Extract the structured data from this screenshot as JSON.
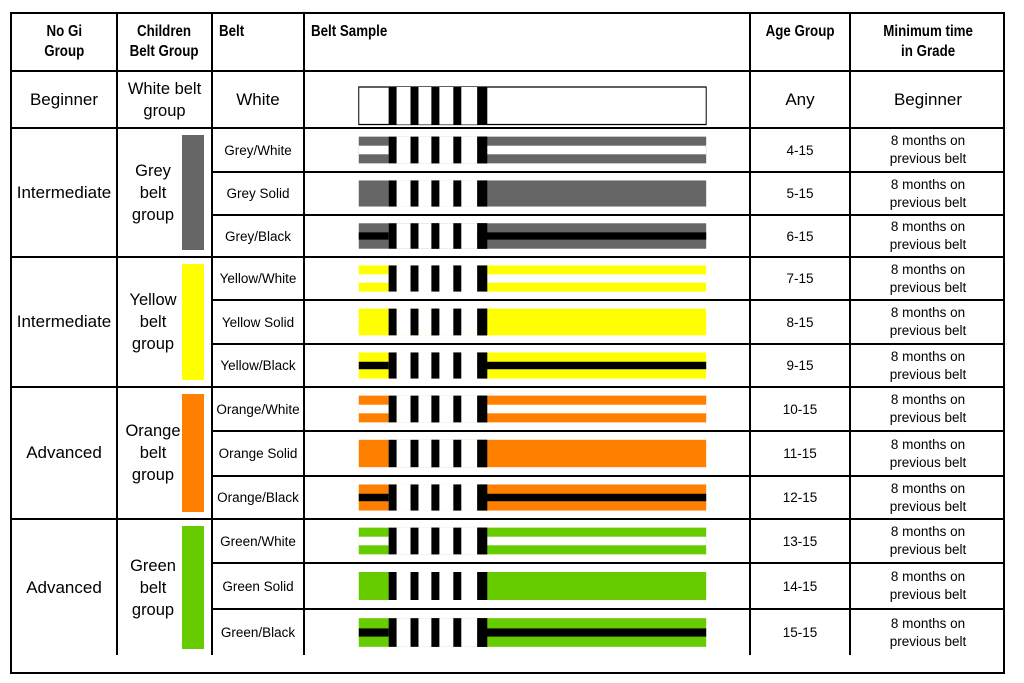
{
  "headers": {
    "no_gi_group": "No Gi\nGroup",
    "children_belt_group": "Children\nBelt Group",
    "belt": "Belt",
    "belt_sample": "Belt Sample",
    "age_group": "Age Group",
    "minimum_time": "Minimum time\nin Grade"
  },
  "groups": [
    {
      "no_gi": "Beginner",
      "children_group": "White belt\ngroup",
      "swatch_color": "",
      "belts": [
        {
          "name": "White",
          "age": "Any",
          "min_time": "Beginner",
          "base": "#ffffff",
          "stripe": ""
        }
      ]
    },
    {
      "no_gi": "Intermediate",
      "children_group": "Grey\nbelt\ngroup",
      "swatch_color": "#666666",
      "belts": [
        {
          "name": "Grey/White",
          "age": "4-15",
          "min_time": "8 months on\nprevious belt",
          "base": "#666666",
          "stripe": "#ffffff"
        },
        {
          "name": "Grey Solid",
          "age": "5-15",
          "min_time": "8 months on\nprevious belt",
          "base": "#666666",
          "stripe": ""
        },
        {
          "name": "Grey/Black",
          "age": "6-15",
          "min_time": "8 months on\nprevious belt",
          "base": "#666666",
          "stripe": "#000000"
        }
      ]
    },
    {
      "no_gi": "Intermediate",
      "children_group": "Yellow\nbelt\ngroup",
      "swatch_color": "#ffff00",
      "belts": [
        {
          "name": "Yellow/White",
          "age": "7-15",
          "min_time": "8 months on\nprevious belt",
          "base": "#ffff00",
          "stripe": "#ffffff"
        },
        {
          "name": "Yellow Solid",
          "age": "8-15",
          "min_time": "8 months on\nprevious belt",
          "base": "#ffff00",
          "stripe": ""
        },
        {
          "name": "Yellow/Black",
          "age": "9-15",
          "min_time": "8 months on\nprevious belt",
          "base": "#ffff00",
          "stripe": "#000000"
        }
      ]
    },
    {
      "no_gi": "Advanced",
      "children_group": "Orange\nbelt\ngroup",
      "swatch_color": "#ff7f00",
      "belts": [
        {
          "name": "Orange/White",
          "age": "10-15",
          "min_time": "8 months on\nprevious belt",
          "base": "#ff7f00",
          "stripe": "#ffffff"
        },
        {
          "name": "Orange Solid",
          "age": "11-15",
          "min_time": "8 months on\nprevious belt",
          "base": "#ff7f00",
          "stripe": ""
        },
        {
          "name": "Orange/Black",
          "age": "12-15",
          "min_time": "8 months on\nprevious belt",
          "base": "#ff7f00",
          "stripe": "#000000"
        }
      ]
    },
    {
      "no_gi": "Advanced",
      "children_group": "Green\nbelt\ngroup",
      "swatch_color": "#66cc00",
      "belts": [
        {
          "name": "Green/White",
          "age": "13-15",
          "min_time": "8 months on\nprevious belt",
          "base": "#66cc00",
          "stripe": "#ffffff"
        },
        {
          "name": "Green Solid",
          "age": "14-15",
          "min_time": "8 months on\nprevious belt",
          "base": "#66cc00",
          "stripe": ""
        },
        {
          "name": "Green/Black",
          "age": "15-15",
          "min_time": "8 months on\nprevious belt",
          "base": "#66cc00",
          "stripe": "#000000"
        }
      ]
    }
  ]
}
